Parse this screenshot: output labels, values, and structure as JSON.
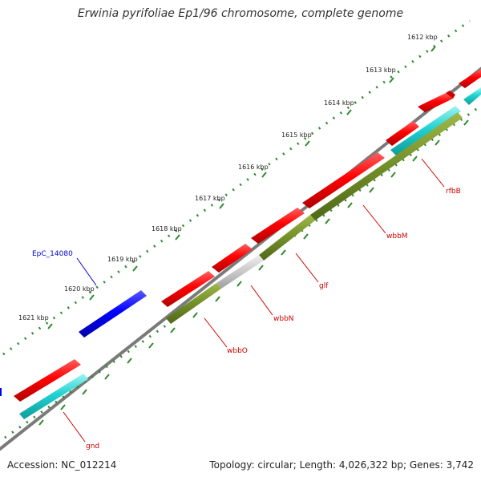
{
  "title": "Erwinia pyrifoliae Ep1/96 chromosome, complete genome",
  "accession": "Accession: NC_012214",
  "summary": "Topology: circular; Length: 4,026,322 bp; Genes: 3,742",
  "colors": {
    "backbone": "#7a7a7a",
    "ruler_dots": "#2d8a2d",
    "label_red": "#cc0000",
    "label_blue": "#0000cc"
  },
  "ruler": {
    "ticks": [
      {
        "label": "1612 kbp"
      },
      {
        "label": "1613 kbp"
      },
      {
        "label": "1614 kbp"
      },
      {
        "label": "1615 kbp"
      },
      {
        "label": "1616 kbp"
      },
      {
        "label": "1617 kbp"
      },
      {
        "label": "1618 kbp"
      },
      {
        "label": "1619 kbp"
      },
      {
        "label": "1620 kbp"
      },
      {
        "label": "1621 kbp"
      }
    ]
  },
  "genes": [
    {
      "name": "rfbB",
      "color": "red"
    },
    {
      "name": "wbbM",
      "color": "red"
    },
    {
      "name": "glf",
      "color": "red"
    },
    {
      "name": "wbbN",
      "color": "red"
    },
    {
      "name": "wbbO",
      "color": "red"
    },
    {
      "name": "gnd",
      "color": "red"
    },
    {
      "name": "EpC_14080",
      "color": "blue"
    }
  ]
}
